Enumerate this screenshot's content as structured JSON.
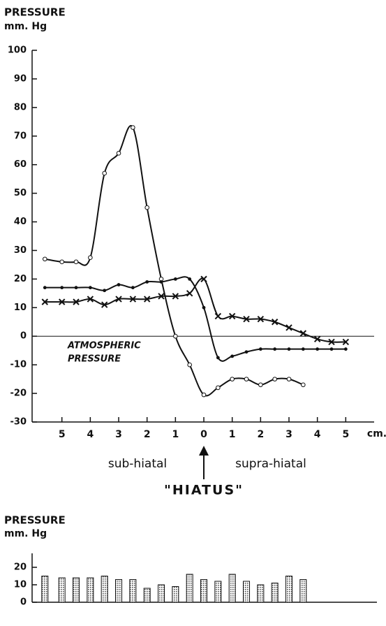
{
  "chart_data": [
    {
      "type": "line",
      "y_label": [
        "PRESSURE",
        "mm. Hg"
      ],
      "x_unit": "cm.",
      "annotations": {
        "reference": [
          "ATMOSPHERIC",
          "PRESSURE"
        ],
        "left": "sub-hiatal",
        "right": "supra-hiatal",
        "center": "\"HIATUS\""
      },
      "reference_line": 0,
      "xlim": [
        -6.05,
        6
      ],
      "ylim": [
        -30,
        100
      ],
      "xticks": [
        {
          "value": -5,
          "label": "5"
        },
        {
          "value": -4,
          "label": "4"
        },
        {
          "value": -3,
          "label": "3"
        },
        {
          "value": -2,
          "label": "2"
        },
        {
          "value": -1,
          "label": "1"
        },
        0,
        1,
        2,
        3,
        4,
        5
      ],
      "yticks": [
        {
          "value": -30,
          "label": "-30"
        },
        {
          "value": -20,
          "label": "-20"
        },
        {
          "value": -10,
          "label": "-10"
        },
        0,
        10,
        20,
        30,
        40,
        50,
        60,
        70,
        80,
        90,
        100
      ],
      "series": [
        {
          "marker": "circle",
          "color": "#111",
          "x": [
            -5.6,
            -5,
            -4.5,
            -4,
            -3.5,
            -3,
            -2.5,
            -2,
            -1.5,
            -1,
            -0.5,
            0,
            0.5,
            1,
            1.5,
            2,
            2.5,
            3,
            3.5
          ],
          "values": [
            27,
            26,
            26,
            27.5,
            57,
            64,
            73,
            45,
            20,
            0,
            -10,
            -20.5,
            -18,
            -15,
            -15,
            -17,
            -15,
            -15,
            -17
          ]
        },
        {
          "marker": "dot",
          "color": "#111",
          "x": [
            -5.6,
            -5,
            -4.5,
            -4,
            -3.5,
            -3,
            -2.5,
            -2,
            -1.5,
            -1,
            -0.5,
            0,
            0.5,
            1,
            1.5,
            2,
            2.5,
            3,
            3.5,
            4,
            4.5,
            5
          ],
          "values": [
            17,
            17,
            17,
            17,
            16,
            18,
            17,
            19,
            19,
            20,
            20,
            10,
            -7.5,
            -7,
            -5.5,
            -4.5,
            -4.5,
            -4.5,
            -4.5,
            -4.5,
            -4.5,
            -4.5
          ]
        },
        {
          "marker": "cross",
          "color": "#111",
          "x": [
            -5.6,
            -5,
            -4.5,
            -4,
            -3.5,
            -3,
            -2.5,
            -2,
            -1.5,
            -1,
            -0.5,
            0,
            0.5,
            1,
            1.5,
            2,
            2.5,
            3,
            3.5,
            4,
            4.5,
            5
          ],
          "values": [
            12,
            12,
            12,
            13,
            11,
            13,
            13,
            13,
            14,
            14,
            15,
            20,
            7,
            7,
            6,
            6,
            5,
            3,
            1,
            -1,
            -2,
            -2
          ]
        }
      ]
    },
    {
      "type": "bar",
      "y_label": [
        "PRESSURE",
        "mm. Hg"
      ],
      "xlim": [
        -6.05,
        6
      ],
      "ylim": [
        0,
        28
      ],
      "yticks": [
        0,
        10,
        20
      ],
      "color": "#888",
      "x": [
        -5.6,
        -5,
        -4.5,
        -4,
        -3.5,
        -3,
        -2.5,
        -2,
        -1.5,
        -1,
        -0.5,
        0,
        0.5,
        1,
        1.5,
        2,
        2.5,
        3,
        3.5
      ],
      "values": [
        15,
        14,
        14,
        14,
        15,
        13,
        13,
        8,
        10,
        9,
        16,
        13,
        12,
        16,
        12,
        10,
        11,
        15,
        13
      ]
    }
  ]
}
